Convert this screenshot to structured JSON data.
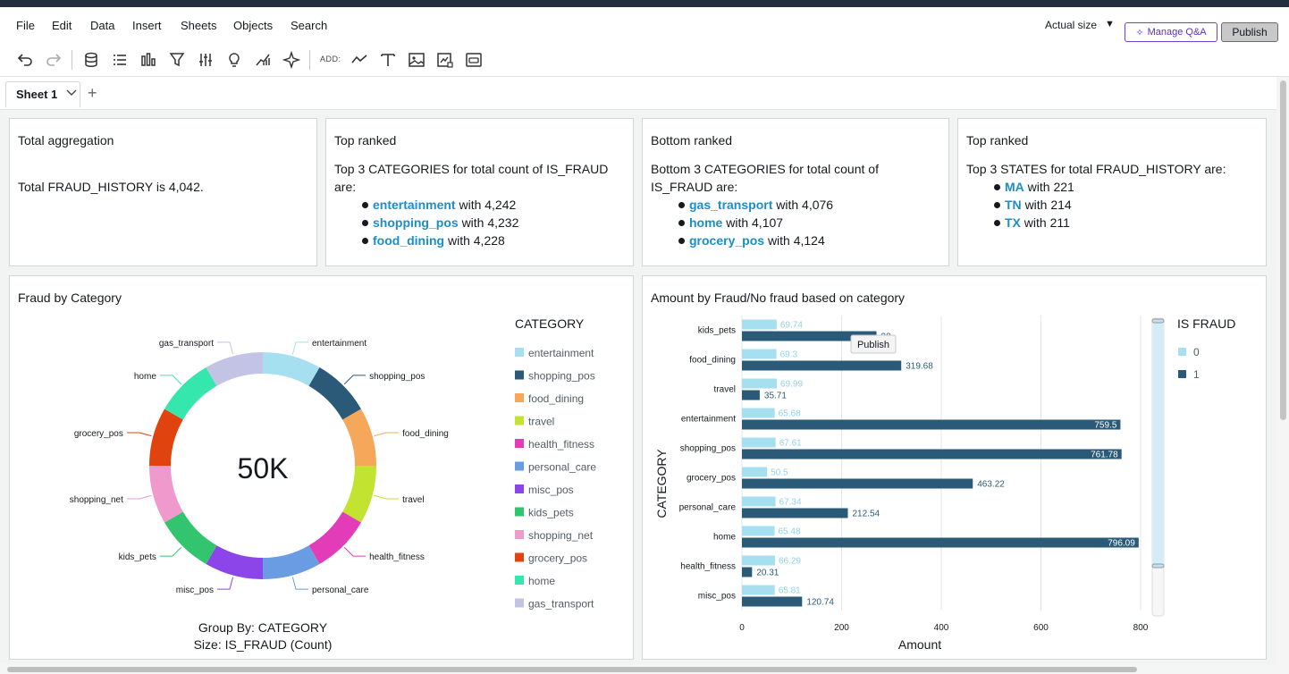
{
  "menu": {
    "items": [
      "File",
      "Edit",
      "Data",
      "Insert",
      "Sheets",
      "Objects",
      "Search"
    ],
    "actual_size": "Actual size",
    "manage_qa": "Manage Q&A",
    "publish": "Publish"
  },
  "toolbar": {
    "add_label": "ADD:",
    "icons": [
      "undo-icon",
      "redo-icon",
      "dataset-icon",
      "list-icon",
      "bar-chart-icon",
      "filter-icon",
      "controls-icon",
      "insight-bulb-icon",
      "forecast-icon",
      "sparkle-icon",
      "line-chart-icon",
      "text-icon",
      "image-icon",
      "custom-visual-icon",
      "embed-icon"
    ]
  },
  "sheets": {
    "active": "Sheet 1"
  },
  "insights": [
    {
      "title": "Total aggregation",
      "text": "Total FRAUD_HISTORY is 4,042.",
      "items": []
    },
    {
      "title": "Top ranked",
      "text": "Top 3 CATEGORIES for total count of IS_FRAUD are:",
      "items": [
        {
          "name": "entertainment",
          "value": "with 4,242"
        },
        {
          "name": "shopping_pos",
          "value": "with 4,232"
        },
        {
          "name": "food_dining",
          "value": "with 4,228"
        }
      ]
    },
    {
      "title": "Bottom ranked",
      "text": "Bottom 3 CATEGORIES for total count of IS_FRAUD are:",
      "items": [
        {
          "name": "gas_transport",
          "value": "with 4,076"
        },
        {
          "name": "home",
          "value": "with 4,107"
        },
        {
          "name": "grocery_pos",
          "value": "with 4,124"
        }
      ]
    },
    {
      "title": "Top ranked",
      "text": "Top 3 STATES for total FRAUD_HISTORY are:",
      "items": [
        {
          "name": "MA",
          "value": "with 221"
        },
        {
          "name": "TN",
          "value": "with 214"
        },
        {
          "name": "TX",
          "value": "with 211"
        }
      ]
    }
  ],
  "donut": {
    "title": "Fraud by Category",
    "center_label": "50K",
    "legend_title": "CATEGORY",
    "footer_line1": "Group By: CATEGORY",
    "footer_line2": "Size: IS_FRAUD (Count)",
    "categories": [
      "entertainment",
      "shopping_pos",
      "food_dining",
      "travel",
      "health_fitness",
      "personal_care",
      "misc_pos",
      "kids_pets",
      "shopping_net",
      "grocery_pos",
      "home",
      "gas_transport"
    ],
    "colors": [
      "#a6e0f0",
      "#2a5a78",
      "#f5a85a",
      "#c2e32f",
      "#e33cb8",
      "#6a9ce3",
      "#8b45e8",
      "#32c46f",
      "#ef99cc",
      "#e0430e",
      "#35e6ad",
      "#c3c3e6"
    ]
  },
  "bar": {
    "title": "Amount by Fraud/No fraud based on category",
    "legend_title": "IS FRAUD",
    "legend_items": [
      "0",
      "1"
    ],
    "colors": [
      "#a6e0f0",
      "#2a5a78"
    ],
    "tooltip": "Publish",
    "tooltip_hidden_value": "38"
  },
  "chart_data": {
    "type": "bar",
    "orientation": "horizontal",
    "ylabel": "CATEGORY",
    "xlabel": "Amount",
    "xlim": [
      0,
      800
    ],
    "xticks": [
      0,
      200,
      400,
      600,
      800
    ],
    "categories": [
      "kids_pets",
      "food_dining",
      "travel",
      "entertainment",
      "shopping_pos",
      "grocery_pos",
      "personal_care",
      "home",
      "health_fitness",
      "misc_pos"
    ],
    "series": [
      {
        "name": "0",
        "values": [
          69.74,
          69.3,
          69.99,
          65.68,
          67.61,
          50.5,
          67.34,
          65.48,
          66.29,
          65.81
        ]
      },
      {
        "name": "1",
        "values": [
          270,
          319.68,
          35.71,
          759.5,
          761.78,
          463.22,
          212.54,
          796.09,
          20.31,
          120.74
        ]
      }
    ],
    "value_labels_1": [
      "38",
      "319.68",
      "35.71",
      "759.5",
      "761.78",
      "463.22",
      "212.54",
      "796.09",
      "20.31",
      "120.74"
    ],
    "value_labels_0": [
      "69.74",
      "69.3",
      "69.99",
      "65.68",
      "67.61",
      "50.5",
      "67.34",
      "65.48",
      "66.29",
      "65.81"
    ],
    "grid": true,
    "legend_position": "right"
  }
}
